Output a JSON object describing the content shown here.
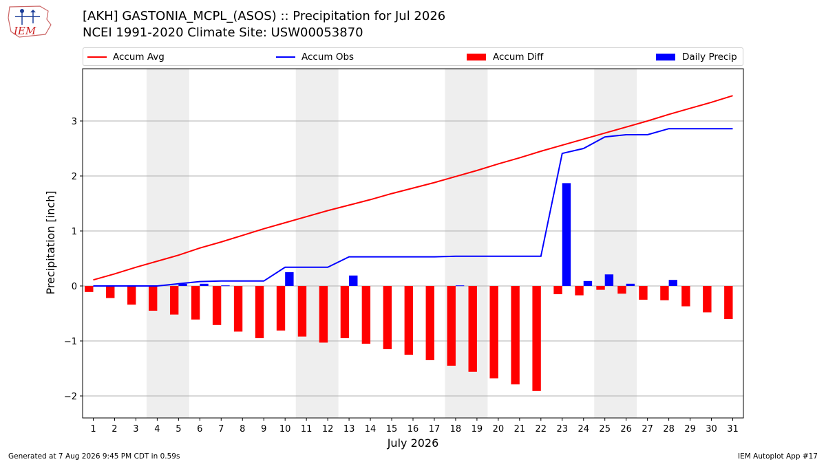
{
  "header": {
    "title_line1": "[AKH] GASTONIA_MCPL_(ASOS) :: Precipitation for Jul 2026",
    "title_line2": "NCEI 1991-2020 Climate Site: USW00053870",
    "logo_text": "IEM"
  },
  "footer": {
    "generated": "Generated at 7 Aug 2026 9:45 PM CDT in 0.59s",
    "app": "IEM Autoplot App #17"
  },
  "colors": {
    "accum_avg": "#ff0000",
    "accum_obs": "#0000ff",
    "accum_diff": "#ff0000",
    "daily_precip": "#0000ff",
    "weekend_shade": "#eeeeee",
    "grid": "#b0b0b0"
  },
  "legend": [
    {
      "label": "Accum Avg",
      "kind": "line",
      "color": "#ff0000"
    },
    {
      "label": "Accum Obs",
      "kind": "line",
      "color": "#0000ff"
    },
    {
      "label": "Accum Diff",
      "kind": "bar",
      "color": "#ff0000"
    },
    {
      "label": "Daily Precip",
      "kind": "bar",
      "color": "#0000ff"
    }
  ],
  "chart_data": {
    "type": "bar",
    "xlabel": "July 2026",
    "ylabel": "Precipitation [inch]",
    "xlim": [
      0.5,
      31.5
    ],
    "ylim": [
      -2.4,
      3.95
    ],
    "yticks": [
      -2,
      -1,
      0,
      1,
      2,
      3
    ],
    "ytick_labels": [
      "−2",
      "−1",
      "0",
      "1",
      "2",
      "3"
    ],
    "grid": "horizontal",
    "legend_position": "top",
    "shaded_weekends": [
      [
        4,
        5
      ],
      [
        11,
        12
      ],
      [
        18,
        19
      ],
      [
        25,
        26
      ]
    ],
    "categories": [
      1,
      2,
      3,
      4,
      5,
      6,
      7,
      8,
      9,
      10,
      11,
      12,
      13,
      14,
      15,
      16,
      17,
      18,
      19,
      20,
      21,
      22,
      23,
      24,
      25,
      26,
      27,
      28,
      29,
      30,
      31
    ],
    "series": [
      {
        "name": "Accum Avg",
        "type": "line",
        "values": [
          0.11,
          0.22,
          0.34,
          0.45,
          0.56,
          0.69,
          0.8,
          0.92,
          1.04,
          1.15,
          1.26,
          1.37,
          1.47,
          1.57,
          1.68,
          1.78,
          1.88,
          1.99,
          2.1,
          2.22,
          2.33,
          2.45,
          2.56,
          2.67,
          2.78,
          2.89,
          3.0,
          3.12,
          3.23,
          3.34,
          3.46
        ]
      },
      {
        "name": "Accum Obs",
        "type": "line",
        "values": [
          0.0,
          0.0,
          0.0,
          0.0,
          0.04,
          0.08,
          0.09,
          0.09,
          0.09,
          0.34,
          0.34,
          0.34,
          0.53,
          0.53,
          0.53,
          0.53,
          0.53,
          0.54,
          0.54,
          0.54,
          0.54,
          0.54,
          2.41,
          2.5,
          2.71,
          2.75,
          2.75,
          2.86,
          2.86,
          2.86,
          2.86
        ]
      },
      {
        "name": "Accum Diff",
        "type": "bar",
        "values": [
          -0.11,
          -0.22,
          -0.34,
          -0.45,
          -0.52,
          -0.61,
          -0.71,
          -0.83,
          -0.95,
          -0.81,
          -0.92,
          -1.03,
          -0.95,
          -1.05,
          -1.15,
          -1.25,
          -1.35,
          -1.45,
          -1.56,
          -1.68,
          -1.79,
          -1.91,
          -0.15,
          -0.17,
          -0.07,
          -0.14,
          -0.25,
          -0.26,
          -0.37,
          -0.48,
          -0.6
        ]
      },
      {
        "name": "Daily Precip",
        "type": "bar",
        "values": [
          0,
          0,
          0,
          0,
          0.04,
          0.04,
          0.01,
          0,
          0,
          0.25,
          0,
          0,
          0.19,
          0,
          0,
          0,
          0,
          0.01,
          0,
          0,
          0,
          0,
          1.87,
          0.09,
          0.21,
          0.04,
          0,
          0.11,
          0,
          0,
          0
        ]
      }
    ]
  }
}
